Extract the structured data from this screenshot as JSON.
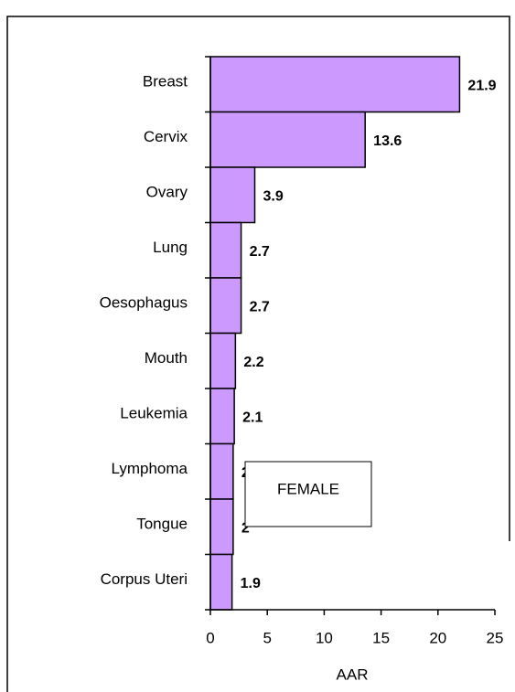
{
  "chart_data": {
    "type": "bar",
    "orientation": "horizontal",
    "categories": [
      "Breast",
      "Cervix",
      "Ovary",
      "Lung",
      "Oesophagus",
      "Mouth",
      "Leukemia",
      "Lymphoma",
      "Tongue",
      "Corpus Uteri"
    ],
    "values": [
      21.9,
      13.6,
      3.9,
      2.7,
      2.7,
      2.2,
      2.1,
      2,
      2,
      1.9
    ],
    "color": "#cc99ff",
    "xlabel": "AAR",
    "xlim": [
      0,
      25
    ],
    "xticks": [
      0,
      5,
      10,
      15,
      20,
      25
    ],
    "annotation": "FEMALE"
  }
}
